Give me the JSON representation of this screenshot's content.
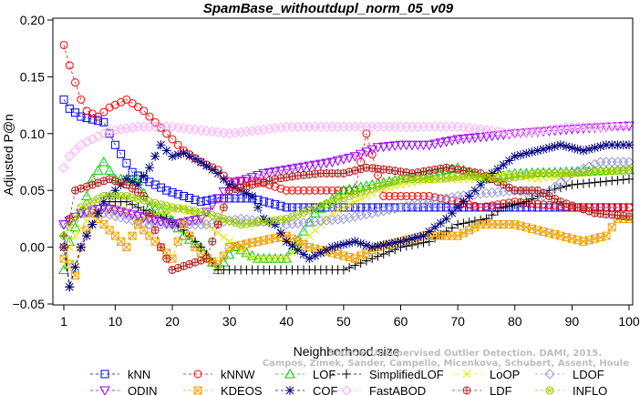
{
  "chart_data": {
    "type": "scatter",
    "title": "SpamBase_withoutdupl_norm_05_v09",
    "xlabel": "Neighborhood size",
    "ylabel": "Adjusted P@n",
    "xlim": [
      1,
      100
    ],
    "ylim": [
      -0.05,
      0.2
    ],
    "x_ticks": [
      1,
      10,
      20,
      30,
      40,
      50,
      60,
      70,
      80,
      90,
      100
    ],
    "y_ticks": [
      -0.05,
      0.0,
      0.05,
      0.1,
      0.15,
      0.2
    ],
    "y_tick_labels": [
      "−0.05",
      "0.00",
      "0.05",
      "0.10",
      "0.15",
      "0.20"
    ],
    "grid": false,
    "legend_position": "bottom",
    "watermark": [
      "Source: Unsupervised Outlier Detection. DAMI, 2015.",
      "Campos, Zimek, Sander, Campello, Micenkova, Schubert, Assent, Houle"
    ],
    "series": [
      {
        "name": "kNN",
        "color": "#0000ff",
        "marker": "square",
        "knots": [
          [
            1,
            0.13
          ],
          [
            2,
            0.122
          ],
          [
            4,
            0.115
          ],
          [
            8,
            0.11
          ],
          [
            10,
            0.09
          ],
          [
            13,
            0.066
          ],
          [
            15,
            0.06
          ],
          [
            19,
            0.05
          ],
          [
            22,
            0.045
          ],
          [
            25,
            0.04
          ],
          [
            28,
            0.043
          ],
          [
            34,
            0.043
          ],
          [
            40,
            0.035
          ],
          [
            100,
            0.035
          ]
        ]
      },
      {
        "name": "kNNW",
        "color": "#ff0000",
        "marker": "circle",
        "knots": [
          [
            1,
            0.178
          ],
          [
            2,
            0.16
          ],
          [
            3,
            0.145
          ],
          [
            4,
            0.13
          ],
          [
            5,
            0.12
          ],
          [
            7,
            0.115
          ],
          [
            9,
            0.123
          ],
          [
            12,
            0.13
          ],
          [
            15,
            0.12
          ],
          [
            17,
            0.11
          ],
          [
            19,
            0.1
          ],
          [
            22,
            0.085
          ],
          [
            25,
            0.075
          ],
          [
            28,
            0.068
          ],
          [
            30,
            0.058
          ],
          [
            35,
            0.058
          ],
          [
            40,
            0.05
          ],
          [
            52,
            0.05
          ],
          [
            54,
            0.1
          ],
          [
            57,
            0.045
          ],
          [
            65,
            0.045
          ],
          [
            70,
            0.04
          ],
          [
            74,
            0.035
          ],
          [
            80,
            0.04
          ],
          [
            90,
            0.035
          ],
          [
            100,
            0.035
          ]
        ]
      },
      {
        "name": "LOF",
        "color": "#00cc00",
        "marker": "triangle-up",
        "knots": [
          [
            1,
            -0.02
          ],
          [
            2,
            0.005
          ],
          [
            4,
            0.03
          ],
          [
            6,
            0.06
          ],
          [
            8,
            0.075
          ],
          [
            10,
            0.06
          ],
          [
            14,
            0.06
          ],
          [
            16,
            0.035
          ],
          [
            19,
            0.03
          ],
          [
            22,
            0.01
          ],
          [
            25,
            0.0
          ],
          [
            28,
            -0.02
          ],
          [
            31,
            0.0
          ],
          [
            35,
            -0.01
          ],
          [
            40,
            -0.01
          ],
          [
            45,
            0.03
          ],
          [
            50,
            0.05
          ],
          [
            55,
            0.055
          ],
          [
            60,
            0.06
          ],
          [
            65,
            0.065
          ],
          [
            70,
            0.07
          ],
          [
            75,
            0.06
          ],
          [
            80,
            0.065
          ],
          [
            100,
            0.068
          ]
        ]
      },
      {
        "name": "SimplifiedLOF",
        "color": "#000000",
        "marker": "plus",
        "knots": [
          [
            1,
            0.01
          ],
          [
            2,
            -0.035
          ],
          [
            4,
            0.0
          ],
          [
            6,
            0.02
          ],
          [
            8,
            0.04
          ],
          [
            12,
            0.04
          ],
          [
            16,
            0.03
          ],
          [
            19,
            0.025
          ],
          [
            22,
            0.015
          ],
          [
            25,
            0.0
          ],
          [
            28,
            -0.02
          ],
          [
            32,
            -0.02
          ],
          [
            40,
            -0.02
          ],
          [
            50,
            -0.02
          ],
          [
            55,
            -0.01
          ],
          [
            60,
            0.0
          ],
          [
            65,
            0.005
          ],
          [
            70,
            0.02
          ],
          [
            75,
            0.025
          ],
          [
            78,
            0.035
          ],
          [
            82,
            0.04
          ],
          [
            86,
            0.05
          ],
          [
            90,
            0.055
          ],
          [
            100,
            0.06
          ]
        ]
      },
      {
        "name": "LoOP",
        "color": "#e6e600",
        "marker": "x",
        "knots": [
          [
            1,
            -0.01
          ],
          [
            3,
            0.01
          ],
          [
            6,
            0.03
          ],
          [
            10,
            0.035
          ],
          [
            14,
            0.025
          ],
          [
            18,
            0.03
          ],
          [
            22,
            0.035
          ],
          [
            26,
            0.02
          ],
          [
            30,
            0.005
          ],
          [
            34,
            -0.01
          ],
          [
            40,
            -0.01
          ],
          [
            44,
            0.01
          ],
          [
            48,
            0.03
          ],
          [
            52,
            0.04
          ],
          [
            56,
            0.05
          ],
          [
            60,
            0.055
          ],
          [
            66,
            0.06
          ],
          [
            72,
            0.06
          ],
          [
            78,
            0.065
          ],
          [
            84,
            0.06
          ],
          [
            90,
            0.065
          ],
          [
            100,
            0.068
          ]
        ]
      },
      {
        "name": "LDOF",
        "color": "#9999dd",
        "marker": "diamond",
        "knots": [
          [
            1,
            0.02
          ],
          [
            4,
            0.03
          ],
          [
            8,
            0.03
          ],
          [
            12,
            0.025
          ],
          [
            16,
            0.02
          ],
          [
            20,
            0.02
          ],
          [
            26,
            0.02
          ],
          [
            32,
            0.025
          ],
          [
            40,
            0.02
          ],
          [
            50,
            0.025
          ],
          [
            60,
            0.035
          ],
          [
            70,
            0.045
          ],
          [
            80,
            0.05
          ],
          [
            85,
            0.045
          ],
          [
            90,
            0.065
          ],
          [
            95,
            0.075
          ],
          [
            100,
            0.075
          ]
        ]
      },
      {
        "name": "ODIN",
        "color": "#9900ff",
        "marker": "triangle-down",
        "knots": [
          [
            1,
            0.02
          ],
          [
            4,
            0.03
          ],
          [
            8,
            0.035
          ],
          [
            12,
            0.03
          ],
          [
            16,
            0.025
          ],
          [
            20,
            0.02
          ],
          [
            25,
            0.025
          ],
          [
            30,
            0.055
          ],
          [
            36,
            0.065
          ],
          [
            42,
            0.07
          ],
          [
            48,
            0.075
          ],
          [
            52,
            0.08
          ],
          [
            56,
            0.088
          ],
          [
            60,
            0.09
          ],
          [
            65,
            0.09
          ],
          [
            70,
            0.095
          ],
          [
            80,
            0.1
          ],
          [
            90,
            0.104
          ],
          [
            100,
            0.107
          ]
        ]
      },
      {
        "name": "KDEOS",
        "color": "#f0a000",
        "marker": "square-x",
        "knots": [
          [
            1,
            -0.01
          ],
          [
            2,
            -0.015
          ],
          [
            3,
            -0.025
          ],
          [
            4,
            0.0
          ],
          [
            6,
            0.03
          ],
          [
            8,
            0.02
          ],
          [
            10,
            0.01
          ],
          [
            12,
            0.0
          ],
          [
            14,
            0.02
          ],
          [
            16,
            0.01
          ],
          [
            18,
            0.0
          ],
          [
            20,
            -0.01
          ],
          [
            22,
            0.02
          ],
          [
            24,
            0.0
          ],
          [
            26,
            -0.01
          ],
          [
            28,
            -0.015
          ],
          [
            30,
            0.0
          ],
          [
            35,
            0.005
          ],
          [
            40,
            0.01
          ],
          [
            44,
            0.0
          ],
          [
            48,
            -0.005
          ],
          [
            52,
            -0.01
          ],
          [
            56,
            0.0
          ],
          [
            60,
            0.005
          ],
          [
            64,
            0.01
          ],
          [
            70,
            0.01
          ],
          [
            74,
            0.02
          ],
          [
            80,
            0.02
          ],
          [
            84,
            0.015
          ],
          [
            88,
            0.01
          ],
          [
            92,
            0.005
          ],
          [
            96,
            0.01
          ],
          [
            98,
            0.025
          ],
          [
            100,
            0.025
          ]
        ]
      },
      {
        "name": "COF",
        "color": "#000080",
        "marker": "asterisk",
        "knots": [
          [
            1,
            0.0
          ],
          [
            2,
            -0.035
          ],
          [
            4,
            0.0
          ],
          [
            6,
            0.02
          ],
          [
            8,
            0.04
          ],
          [
            10,
            0.05
          ],
          [
            12,
            0.06
          ],
          [
            14,
            0.055
          ],
          [
            16,
            0.07
          ],
          [
            18,
            0.09
          ],
          [
            20,
            0.08
          ],
          [
            22,
            0.083
          ],
          [
            25,
            0.075
          ],
          [
            28,
            0.065
          ],
          [
            30,
            0.055
          ],
          [
            34,
            0.045
          ],
          [
            36,
            0.025
          ],
          [
            38,
            0.02
          ],
          [
            40,
            0.005
          ],
          [
            44,
            -0.01
          ],
          [
            48,
            0.0
          ],
          [
            52,
            0.005
          ],
          [
            55,
            0.0
          ],
          [
            60,
            0.005
          ],
          [
            64,
            0.01
          ],
          [
            68,
            0.025
          ],
          [
            72,
            0.045
          ],
          [
            76,
            0.065
          ],
          [
            80,
            0.08
          ],
          [
            84,
            0.085
          ],
          [
            88,
            0.09
          ],
          [
            92,
            0.085
          ],
          [
            96,
            0.09
          ],
          [
            100,
            0.09
          ]
        ]
      },
      {
        "name": "FastABOD",
        "color": "#ffaaff",
        "marker": "diamond",
        "knots": [
          [
            1,
            0.07
          ],
          [
            2,
            0.08
          ],
          [
            4,
            0.09
          ],
          [
            6,
            0.095
          ],
          [
            8,
            0.1
          ],
          [
            10,
            0.103
          ],
          [
            14,
            0.106
          ],
          [
            20,
            0.106
          ],
          [
            30,
            0.1
          ],
          [
            40,
            0.106
          ],
          [
            50,
            0.106
          ],
          [
            60,
            0.106
          ],
          [
            70,
            0.106
          ],
          [
            80,
            0.1
          ],
          [
            90,
            0.106
          ],
          [
            100,
            0.106
          ]
        ]
      },
      {
        "name": "LDF",
        "color": "#b22222",
        "marker": "circle-plus",
        "knots": [
          [
            1,
            0.0
          ],
          [
            3,
            0.05
          ],
          [
            6,
            0.055
          ],
          [
            9,
            0.06
          ],
          [
            12,
            0.055
          ],
          [
            15,
            0.045
          ],
          [
            18,
            0.0
          ],
          [
            20,
            -0.02
          ],
          [
            23,
            -0.015
          ],
          [
            26,
            -0.01
          ],
          [
            30,
            0.05
          ],
          [
            34,
            0.055
          ],
          [
            38,
            0.06
          ],
          [
            42,
            0.063
          ],
          [
            46,
            0.065
          ],
          [
            50,
            0.065
          ],
          [
            54,
            0.07
          ],
          [
            58,
            0.068
          ],
          [
            62,
            0.065
          ],
          [
            68,
            0.07
          ],
          [
            74,
            0.065
          ],
          [
            80,
            0.05
          ],
          [
            84,
            0.05
          ],
          [
            88,
            0.04
          ],
          [
            94,
            0.03
          ],
          [
            100,
            0.027
          ]
        ]
      },
      {
        "name": "INFLO",
        "color": "#99cc00",
        "marker": "circle-x",
        "knots": [
          [
            1,
            0.01
          ],
          [
            4,
            0.035
          ],
          [
            8,
            0.045
          ],
          [
            12,
            0.045
          ],
          [
            16,
            0.04
          ],
          [
            20,
            0.035
          ],
          [
            26,
            0.03
          ],
          [
            32,
            0.02
          ],
          [
            40,
            0.025
          ],
          [
            48,
            0.04
          ],
          [
            54,
            0.05
          ],
          [
            60,
            0.06
          ],
          [
            66,
            0.06
          ],
          [
            72,
            0.063
          ],
          [
            78,
            0.06
          ],
          [
            84,
            0.065
          ],
          [
            90,
            0.065
          ],
          [
            100,
            0.068
          ]
        ]
      }
    ]
  }
}
